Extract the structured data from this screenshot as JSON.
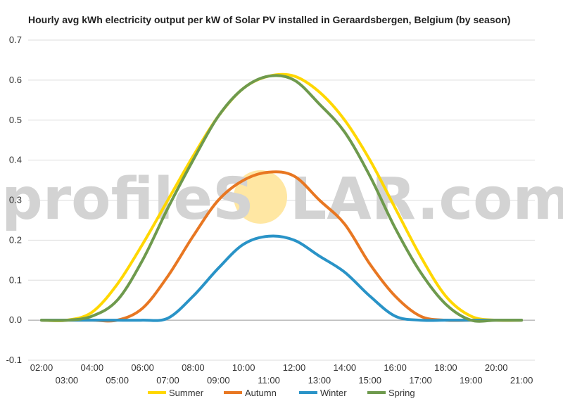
{
  "chart_data": {
    "type": "line",
    "title": "Hourly avg kWh electricity output per kW of Solar PV installed in Geraardsbergen, Belgium (by season)",
    "xlabel": "",
    "ylabel": "",
    "x": [
      "02:00",
      "03:00",
      "04:00",
      "05:00",
      "06:00",
      "07:00",
      "08:00",
      "09:00",
      "10:00",
      "11:00",
      "12:00",
      "13:00",
      "14:00",
      "15:00",
      "16:00",
      "17:00",
      "18:00",
      "19:00",
      "20:00",
      "21:00"
    ],
    "ylim": [
      -0.1,
      0.7
    ],
    "yticks": [
      "0.7",
      "0.6",
      "0.5",
      "0.4",
      "0.3",
      "0.2",
      "0.1",
      "0.0",
      "-0.1"
    ],
    "grid": true,
    "legend_position": "bottom",
    "series": [
      {
        "name": "Summer",
        "color": "#FFD700",
        "values": [
          0.0,
          0.0,
          0.02,
          0.09,
          0.19,
          0.3,
          0.41,
          0.51,
          0.58,
          0.61,
          0.61,
          0.57,
          0.5,
          0.4,
          0.28,
          0.16,
          0.06,
          0.01,
          0.0,
          0.0
        ]
      },
      {
        "name": "Autumn",
        "color": "#E87722",
        "values": [
          0.0,
          0.0,
          0.0,
          0.0,
          0.03,
          0.11,
          0.21,
          0.3,
          0.35,
          0.37,
          0.36,
          0.3,
          0.24,
          0.14,
          0.06,
          0.01,
          0.0,
          0.0,
          0.0,
          0.0
        ]
      },
      {
        "name": "Winter",
        "color": "#2993C7",
        "values": [
          0.0,
          0.0,
          0.0,
          0.0,
          0.0,
          0.005,
          0.06,
          0.13,
          0.19,
          0.21,
          0.2,
          0.16,
          0.12,
          0.06,
          0.01,
          0.0,
          0.0,
          0.0,
          0.0,
          0.0
        ]
      },
      {
        "name": "Spring",
        "color": "#6E9A4D",
        "values": [
          0.0,
          0.0,
          0.01,
          0.05,
          0.15,
          0.28,
          0.4,
          0.51,
          0.58,
          0.61,
          0.6,
          0.54,
          0.47,
          0.36,
          0.23,
          0.12,
          0.04,
          0.0,
          0.0,
          0.0
        ]
      }
    ]
  },
  "watermark": {
    "left_text": "profileS",
    "right_text": "LAR.com",
    "sun_color": "#FFE7A3"
  }
}
